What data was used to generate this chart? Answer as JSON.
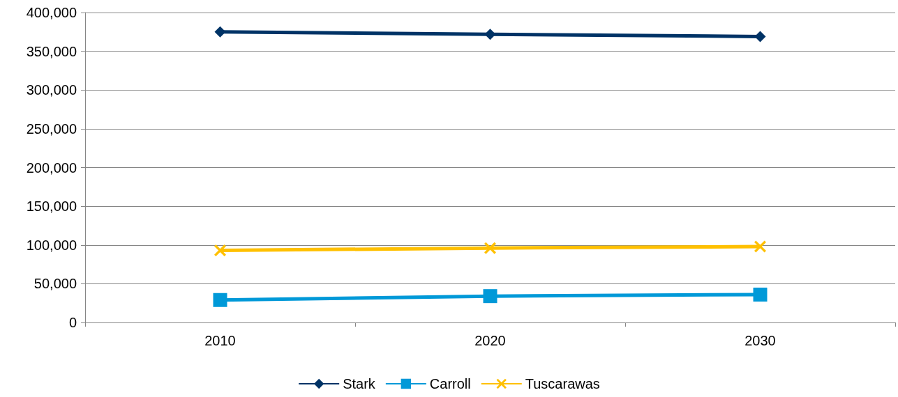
{
  "chart_data": {
    "type": "line",
    "categories": [
      "2010",
      "2020",
      "2030"
    ],
    "series": [
      {
        "name": "Stark",
        "color": "#003366",
        "marker": "diamond",
        "values": [
          375000,
          372000,
          369000
        ]
      },
      {
        "name": "Carroll",
        "color": "#0099d8",
        "marker": "square",
        "values": [
          29000,
          34000,
          36000
        ]
      },
      {
        "name": "Tuscarawas",
        "color": "#ffc000",
        "marker": "cross",
        "values": [
          93000,
          96000,
          98000
        ]
      }
    ],
    "ylim": [
      0,
      400000
    ],
    "yticks": [
      0,
      {
        "value": 50000,
        "label": "50,000"
      },
      {
        "value": 100000,
        "label": "100,000"
      },
      {
        "value": 150000,
        "label": "150,000"
      },
      {
        "value": 200000,
        "label": "200,000"
      },
      {
        "value": 250000,
        "label": "250,000"
      },
      {
        "value": 300000,
        "label": "300,000"
      },
      {
        "value": 350000,
        "label": "350,000"
      },
      {
        "value": 400000,
        "label": "400,000"
      }
    ],
    "grid": "y",
    "legend": "bottom",
    "line_style": "solid"
  }
}
